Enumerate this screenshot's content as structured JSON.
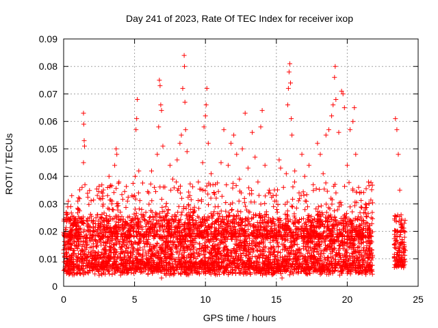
{
  "chart_data": {
    "type": "scatter",
    "title": "Day 241 of 2023, Rate Of TEC Index for receiver ixop",
    "xlabel": "GPS time / hours",
    "ylabel": "ROTI / TECUs",
    "xlim": [
      0,
      25
    ],
    "ylim": [
      0,
      0.09
    ],
    "xticks": [
      "0",
      "5",
      "10",
      "15",
      "20",
      "25"
    ],
    "yticks": [
      "0",
      "0.01",
      "0.02",
      "0.03",
      "0.04",
      "0.05",
      "0.06",
      "0.07",
      "0.08",
      "0.09"
    ],
    "grid": true,
    "legend": "none",
    "marker": "plus",
    "color": "#ff0000",
    "series": [
      {
        "points": [
          [
            0.0,
            0.012
          ],
          [
            0.1,
            0.018
          ],
          [
            0.2,
            0.025
          ],
          [
            0.4,
            0.009
          ],
          [
            0.5,
            0.029
          ],
          [
            0.7,
            0.022
          ],
          [
            0.9,
            0.015
          ],
          [
            1.0,
            0.031
          ],
          [
            1.1,
            0.019
          ],
          [
            1.3,
            0.036
          ],
          [
            1.4,
            0.063
          ],
          [
            1.42,
            0.059
          ],
          [
            1.45,
            0.053
          ],
          [
            1.47,
            0.051
          ],
          [
            1.4,
            0.045
          ],
          [
            1.5,
            0.037
          ],
          [
            1.6,
            0.014
          ],
          [
            1.8,
            0.008
          ],
          [
            2.0,
            0.011
          ],
          [
            2.2,
            0.017
          ],
          [
            2.4,
            0.026
          ],
          [
            2.6,
            0.007
          ],
          [
            2.8,
            0.019
          ],
          [
            3.0,
            0.024
          ],
          [
            3.1,
            0.033
          ],
          [
            3.2,
            0.04
          ],
          [
            3.4,
            0.03
          ],
          [
            3.6,
            0.044
          ],
          [
            3.7,
            0.05
          ],
          [
            3.75,
            0.048
          ],
          [
            3.9,
            0.038
          ],
          [
            4.0,
            0.027
          ],
          [
            4.3,
            0.022
          ],
          [
            4.5,
            0.031
          ],
          [
            4.7,
            0.012
          ],
          [
            4.9,
            0.02
          ],
          [
            5.0,
            0.033
          ],
          [
            5.05,
            0.04
          ],
          [
            5.1,
            0.057
          ],
          [
            5.15,
            0.061
          ],
          [
            5.2,
            0.068
          ],
          [
            5.3,
            0.042
          ],
          [
            5.5,
            0.028
          ],
          [
            5.8,
            0.019
          ],
          [
            6.0,
            0.034
          ],
          [
            6.2,
            0.042
          ],
          [
            6.4,
            0.036
          ],
          [
            6.6,
            0.048
          ],
          [
            6.7,
            0.058
          ],
          [
            6.75,
            0.075
          ],
          [
            6.8,
            0.073
          ],
          [
            6.85,
            0.066
          ],
          [
            6.9,
            0.064
          ],
          [
            7.0,
            0.051
          ],
          [
            7.2,
            0.029
          ],
          [
            7.5,
            0.044
          ],
          [
            7.7,
            0.039
          ],
          [
            8.0,
            0.046
          ],
          [
            8.2,
            0.052
          ],
          [
            8.3,
            0.055
          ],
          [
            8.4,
            0.072
          ],
          [
            8.5,
            0.084
          ],
          [
            8.52,
            0.08
          ],
          [
            8.55,
            0.067
          ],
          [
            8.6,
            0.057
          ],
          [
            8.7,
            0.049
          ],
          [
            8.9,
            0.033
          ],
          [
            9.2,
            0.027
          ],
          [
            9.5,
            0.038
          ],
          [
            9.8,
            0.045
          ],
          [
            9.9,
            0.058
          ],
          [
            10.0,
            0.062
          ],
          [
            10.05,
            0.066
          ],
          [
            10.1,
            0.072
          ],
          [
            10.2,
            0.052
          ],
          [
            10.4,
            0.041
          ],
          [
            10.6,
            0.034
          ],
          [
            10.9,
            0.029
          ],
          [
            11.1,
            0.045
          ],
          [
            11.3,
            0.057
          ],
          [
            11.6,
            0.044
          ],
          [
            11.8,
            0.052
          ],
          [
            12.0,
            0.055
          ],
          [
            12.2,
            0.048
          ],
          [
            12.4,
            0.039
          ],
          [
            12.6,
            0.05
          ],
          [
            12.8,
            0.063
          ],
          [
            13.0,
            0.043
          ],
          [
            13.3,
            0.056
          ],
          [
            13.5,
            0.047
          ],
          [
            13.7,
            0.038
          ],
          [
            13.9,
            0.058
          ],
          [
            14.0,
            0.064
          ],
          [
            14.2,
            0.044
          ],
          [
            14.5,
            0.035
          ],
          [
            14.8,
            0.029
          ],
          [
            15.0,
            0.031
          ],
          [
            15.2,
            0.046
          ],
          [
            15.3,
            0.043
          ],
          [
            15.5,
            0.036
          ],
          [
            15.7,
            0.041
          ],
          [
            15.8,
            0.066
          ],
          [
            15.85,
            0.072
          ],
          [
            15.9,
            0.078
          ],
          [
            15.95,
            0.081
          ],
          [
            16.0,
            0.074
          ],
          [
            16.05,
            0.061
          ],
          [
            16.1,
            0.055
          ],
          [
            16.3,
            0.042
          ],
          [
            16.6,
            0.034
          ],
          [
            16.8,
            0.048
          ],
          [
            17.0,
            0.04
          ],
          [
            17.3,
            0.044
          ],
          [
            17.6,
            0.037
          ],
          [
            17.9,
            0.052
          ],
          [
            18.1,
            0.048
          ],
          [
            18.3,
            0.041
          ],
          [
            18.5,
            0.055
          ],
          [
            18.7,
            0.057
          ],
          [
            18.9,
            0.062
          ],
          [
            19.0,
            0.066
          ],
          [
            19.1,
            0.076
          ],
          [
            19.15,
            0.08
          ],
          [
            19.2,
            0.068
          ],
          [
            19.4,
            0.056
          ],
          [
            19.6,
            0.071
          ],
          [
            19.7,
            0.07
          ],
          [
            19.8,
            0.065
          ],
          [
            20.0,
            0.044
          ],
          [
            20.2,
            0.057
          ],
          [
            20.4,
            0.06
          ],
          [
            20.5,
            0.065
          ],
          [
            20.6,
            0.048
          ],
          [
            20.8,
            0.036
          ],
          [
            21.0,
            0.024
          ],
          [
            21.3,
            0.018
          ],
          [
            21.5,
            0.038
          ],
          [
            21.7,
            0.012
          ],
          [
            23.4,
            0.061
          ],
          [
            23.5,
            0.057
          ],
          [
            23.6,
            0.048
          ],
          [
            23.7,
            0.035
          ],
          [
            23.8,
            0.026
          ],
          [
            24.0,
            0.016
          ],
          [
            0.3,
            0.006
          ],
          [
            2.5,
            0.004
          ],
          [
            6.9,
            0.003
          ],
          [
            9.0,
            0.006
          ],
          [
            12.7,
            0.005
          ],
          [
            15.4,
            0.003
          ],
          [
            18.0,
            0.006
          ],
          [
            20.9,
            0.005
          ],
          [
            23.5,
            0.007
          ],
          [
            10.3,
            0.008
          ],
          [
            17.5,
            0.009
          ],
          [
            4.2,
            0.005
          ]
        ],
        "dense_bands": [
          {
            "from": 0.0,
            "to": 21.8,
            "low": 0.004,
            "high": 0.024
          },
          {
            "from": 23.3,
            "to": 24.1,
            "low": 0.006,
            "high": 0.024
          }
        ]
      }
    ]
  }
}
